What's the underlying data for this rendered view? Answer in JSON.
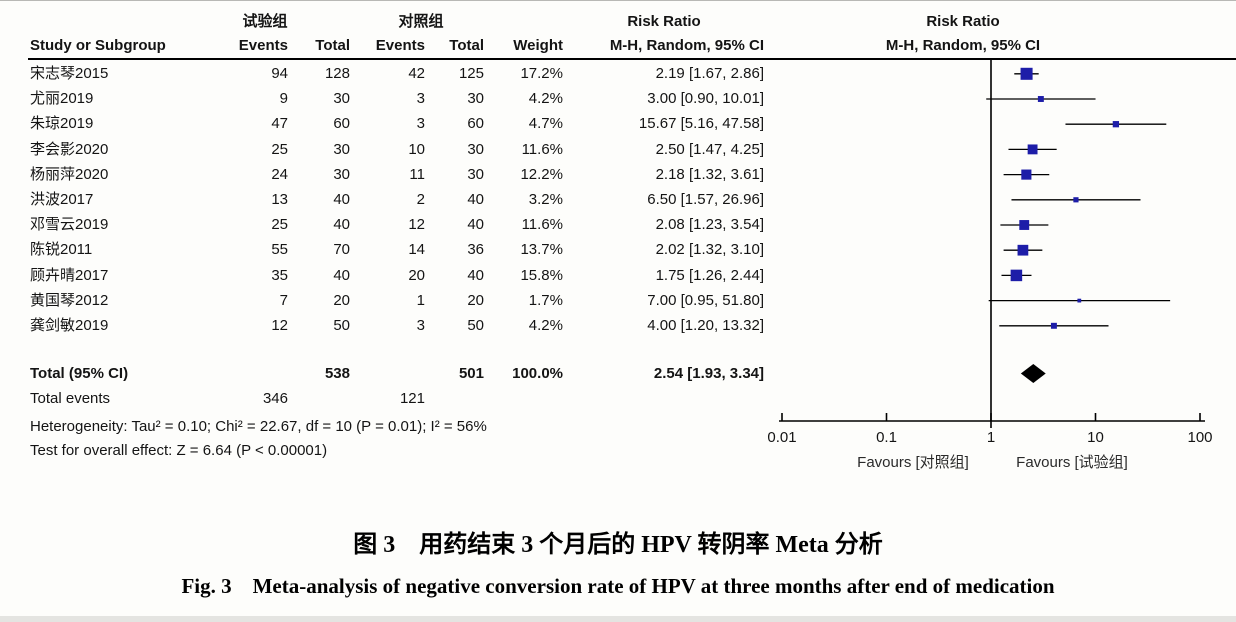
{
  "header": {
    "group_experimental": "试验组",
    "group_control": "对照组",
    "col_study": "Study or Subgroup",
    "col_events": "Events",
    "col_total": "Total",
    "col_weight": "Weight",
    "risk_ratio_title": "Risk Ratio",
    "risk_ratio_subtitle": "M-H, Random, 95% CI"
  },
  "chart_data": {
    "type": "forest",
    "effect_measure": "Risk Ratio",
    "method": "M-H, Random, 95% CI",
    "x_axis": {
      "scale": "log",
      "ticks": [
        0.01,
        0.1,
        1,
        10,
        100
      ],
      "tick_labels": [
        "0.01",
        "0.1",
        "1",
        "10",
        "100"
      ]
    },
    "favours_left": "Favours [对照组]",
    "favours_right": "Favours [试验组]",
    "marker_color": "#1d1da8",
    "diamond_color": "#000000",
    "studies": [
      {
        "name": "宋志琴2015",
        "exp_events": "94",
        "exp_total": "128",
        "ctl_events": "42",
        "ctl_total": "125",
        "weight": "17.2%",
        "weight_pct": 17.2,
        "rr_text": "2.19 [1.67, 2.86]",
        "rr": 2.19,
        "lo": 1.67,
        "hi": 2.86
      },
      {
        "name": "尤丽2019",
        "exp_events": "9",
        "exp_total": "30",
        "ctl_events": "3",
        "ctl_total": "30",
        "weight": "4.2%",
        "weight_pct": 4.2,
        "rr_text": "3.00 [0.90, 10.01]",
        "rr": 3.0,
        "lo": 0.9,
        "hi": 10.01
      },
      {
        "name": "朱琼2019",
        "exp_events": "47",
        "exp_total": "60",
        "ctl_events": "3",
        "ctl_total": "60",
        "weight": "4.7%",
        "weight_pct": 4.7,
        "rr_text": "15.67 [5.16, 47.58]",
        "rr": 15.67,
        "lo": 5.16,
        "hi": 47.58
      },
      {
        "name": "李会影2020",
        "exp_events": "25",
        "exp_total": "30",
        "ctl_events": "10",
        "ctl_total": "30",
        "weight": "11.6%",
        "weight_pct": 11.6,
        "rr_text": "2.50 [1.47, 4.25]",
        "rr": 2.5,
        "lo": 1.47,
        "hi": 4.25
      },
      {
        "name": "杨丽萍2020",
        "exp_events": "24",
        "exp_total": "30",
        "ctl_events": "11",
        "ctl_total": "30",
        "weight": "12.2%",
        "weight_pct": 12.2,
        "rr_text": "2.18 [1.32, 3.61]",
        "rr": 2.18,
        "lo": 1.32,
        "hi": 3.61
      },
      {
        "name": "洪波2017",
        "exp_events": "13",
        "exp_total": "40",
        "ctl_events": "2",
        "ctl_total": "40",
        "weight": "3.2%",
        "weight_pct": 3.2,
        "rr_text": "6.50 [1.57, 26.96]",
        "rr": 6.5,
        "lo": 1.57,
        "hi": 26.96
      },
      {
        "name": "邓雪云2019",
        "exp_events": "25",
        "exp_total": "40",
        "ctl_events": "12",
        "ctl_total": "40",
        "weight": "11.6%",
        "weight_pct": 11.6,
        "rr_text": "2.08 [1.23, 3.54]",
        "rr": 2.08,
        "lo": 1.23,
        "hi": 3.54
      },
      {
        "name": "陈锐2011",
        "exp_events": "55",
        "exp_total": "70",
        "ctl_events": "14",
        "ctl_total": "36",
        "weight": "13.7%",
        "weight_pct": 13.7,
        "rr_text": "2.02 [1.32, 3.10]",
        "rr": 2.02,
        "lo": 1.32,
        "hi": 3.1
      },
      {
        "name": "顾卉晴2017",
        "exp_events": "35",
        "exp_total": "40",
        "ctl_events": "20",
        "ctl_total": "40",
        "weight": "15.8%",
        "weight_pct": 15.8,
        "rr_text": "1.75 [1.26, 2.44]",
        "rr": 1.75,
        "lo": 1.26,
        "hi": 2.44
      },
      {
        "name": "黄国琴2012",
        "exp_events": "7",
        "exp_total": "20",
        "ctl_events": "1",
        "ctl_total": "20",
        "weight": "1.7%",
        "weight_pct": 1.7,
        "rr_text": "7.00 [0.95, 51.80]",
        "rr": 7.0,
        "lo": 0.95,
        "hi": 51.8
      },
      {
        "name": "龚剑敏2019",
        "exp_events": "12",
        "exp_total": "50",
        "ctl_events": "3",
        "ctl_total": "50",
        "weight": "4.2%",
        "weight_pct": 4.2,
        "rr_text": "4.00 [1.20, 13.32]",
        "rr": 4.0,
        "lo": 1.2,
        "hi": 13.32
      }
    ],
    "total": {
      "label": "Total (95% CI)",
      "exp_total": "538",
      "ctl_total": "501",
      "weight": "100.0%",
      "rr_text": "2.54 [1.93, 3.34]",
      "rr": 2.54,
      "lo": 1.93,
      "hi": 3.34
    },
    "total_events": {
      "label": "Total events",
      "exp": "346",
      "ctl": "121"
    },
    "heterogeneity": "Heterogeneity: Tau² = 0.10; Chi² = 22.67, df = 10 (P = 0.01); I² = 56%",
    "overall_effect": "Test for overall effect: Z = 6.64 (P < 0.00001)"
  },
  "caption": {
    "zh": "图 3　用药结束 3 个月后的 HPV 转阴率 Meta 分析",
    "en": "Fig. 3　Meta-analysis of negative conversion rate of HPV at three months after end of medication"
  }
}
